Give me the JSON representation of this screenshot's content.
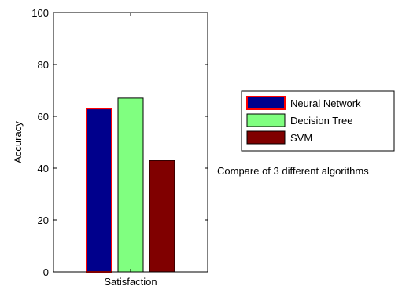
{
  "chart_data": {
    "type": "bar",
    "categories": [
      "Satisfaction"
    ],
    "series": [
      {
        "name": "Neural Network",
        "values": [
          63
        ],
        "color": "#00008c",
        "edge_color": "#ff0000"
      },
      {
        "name": "Decision Tree",
        "values": [
          67
        ],
        "color": "#80ff80",
        "edge_color": "#000000"
      },
      {
        "name": "SVM",
        "values": [
          43
        ],
        "color": "#800000",
        "edge_color": "#000000"
      }
    ],
    "xlabel": "",
    "ylabel": "Accuracy",
    "ylim": [
      0,
      100
    ],
    "yticks": [
      0,
      20,
      40,
      60,
      80,
      100
    ],
    "grid": false,
    "legend_position": "right",
    "annotation": "Compare of 3 different algorithms"
  }
}
